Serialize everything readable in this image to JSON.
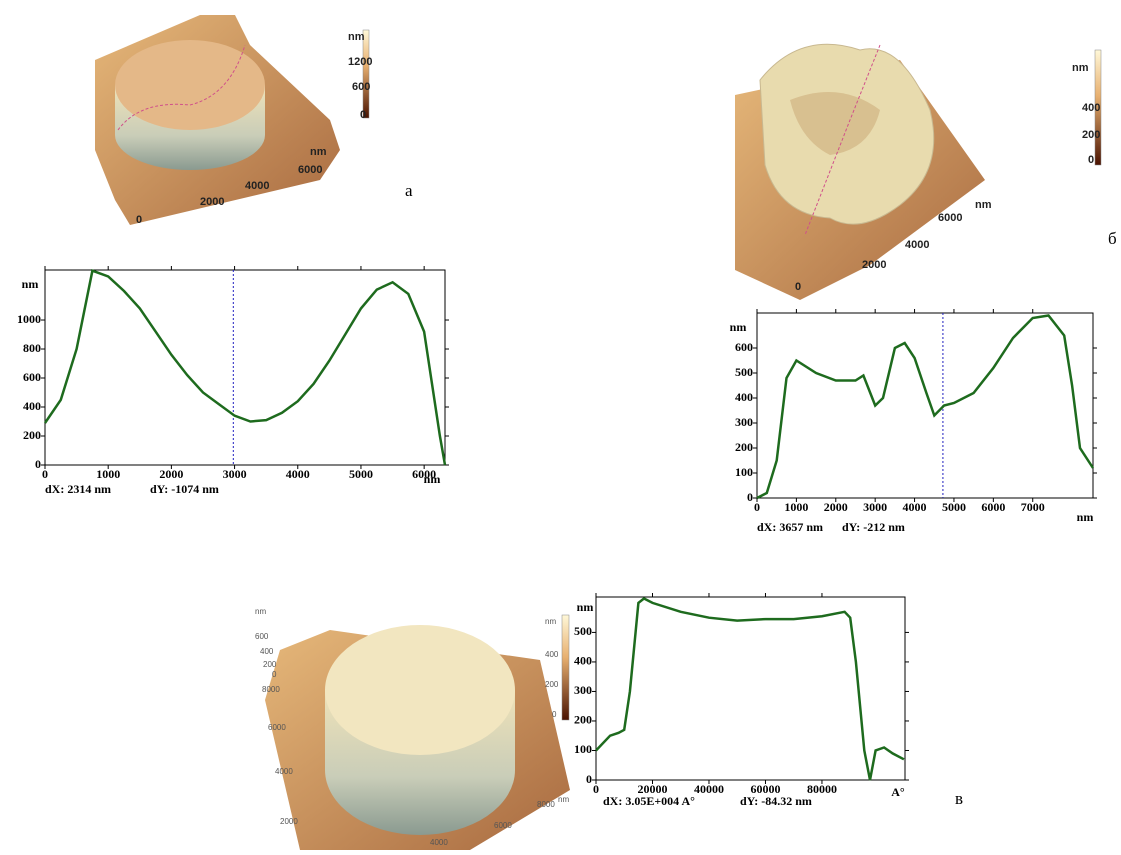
{
  "chart_data": [
    {
      "type": "line",
      "color": "#1e6b1e",
      "x": [
        0,
        250,
        500,
        750,
        1000,
        1250,
        1500,
        1750,
        2000,
        2250,
        2500,
        2750,
        3000,
        3250,
        3500,
        3750,
        4000,
        4250,
        4500,
        4750,
        5000,
        5250,
        5500,
        5750,
        6000,
        6250,
        6330
      ],
      "values": [
        290,
        450,
        800,
        1340,
        1300,
        1200,
        1080,
        920,
        760,
        620,
        500,
        420,
        340,
        300,
        310,
        360,
        440,
        560,
        720,
        900,
        1080,
        1210,
        1260,
        1180,
        920,
        200,
        0
      ],
      "xlim": [
        0,
        6330
      ],
      "ylim": [
        0,
        1345
      ],
      "xticks": [
        0,
        1000,
        2000,
        3000,
        4000,
        5000,
        6000
      ],
      "yticks": [
        0,
        200,
        400,
        600,
        800,
        1000
      ],
      "xlabel": "nm",
      "ylabel": "nm",
      "cursor_x": 2980,
      "annotations": [
        "dX: 2314 nm",
        "dY: -1074 nm"
      ]
    },
    {
      "type": "line",
      "color": "#1e6b1e",
      "x": [
        0,
        250,
        500,
        750,
        1000,
        1500,
        2000,
        2500,
        2700,
        3000,
        3200,
        3500,
        3750,
        4000,
        4300,
        4500,
        4750,
        5000,
        5500,
        6000,
        6500,
        7000,
        7400,
        7800,
        8000,
        8200,
        8530
      ],
      "values": [
        0,
        20,
        150,
        480,
        550,
        500,
        470,
        470,
        490,
        370,
        400,
        600,
        620,
        560,
        420,
        330,
        370,
        380,
        420,
        520,
        640,
        720,
        730,
        650,
        450,
        200,
        120
      ],
      "xlim": [
        0,
        8530
      ],
      "ylim": [
        0,
        740
      ],
      "xticks": [
        0,
        1000,
        2000,
        3000,
        4000,
        5000,
        6000,
        7000
      ],
      "yticks": [
        0,
        100,
        200,
        300,
        400,
        500,
        600
      ],
      "xlabel": "nm",
      "ylabel": "nm",
      "cursor_x": 4720,
      "annotations": [
        "dX: 3657 nm",
        "dY: -212 nm"
      ]
    },
    {
      "type": "line",
      "color": "#1e6b1e",
      "x": [
        0,
        5000,
        8000,
        10000,
        12000,
        15000,
        17000,
        20000,
        30000,
        40000,
        50000,
        60000,
        70000,
        80000,
        88000,
        90000,
        92000,
        95000,
        97000,
        99000,
        102000,
        105000,
        109000
      ],
      "values": [
        100,
        150,
        160,
        170,
        300,
        600,
        615,
        600,
        570,
        550,
        540,
        545,
        545,
        555,
        570,
        550,
        400,
        100,
        0,
        100,
        110,
        90,
        70
      ],
      "xlim": [
        0,
        109400
      ],
      "ylim": [
        0,
        620
      ],
      "xticks": [
        0,
        20000,
        40000,
        60000,
        80000
      ],
      "yticks": [
        0,
        100,
        200,
        300,
        400,
        500
      ],
      "xlabel": "A°",
      "ylabel": "nm",
      "annotations": [
        "dX: 3.05E+004 A°",
        "dY: -84.32 nm"
      ]
    }
  ],
  "images": [
    {
      "letter": "а",
      "colorbar": [
        "nm",
        "1200",
        "600",
        "0"
      ],
      "axis": [
        "nm",
        "6000",
        "4000",
        "2000",
        "0"
      ]
    },
    {
      "letter": "б",
      "colorbar": [
        "nm",
        "400",
        "200",
        "0"
      ],
      "axis": [
        "nm",
        "6000",
        "4000",
        "2000",
        "0"
      ]
    },
    {
      "letter": "в",
      "colorbar": [
        "nm",
        "400",
        "200",
        "0"
      ],
      "axis": [
        "nm",
        "600",
        "400",
        "200",
        "0",
        "8000",
        "6000",
        "4000",
        "2000"
      ],
      "axis2": [
        "8000",
        "nm",
        "6000",
        "4000"
      ]
    }
  ]
}
